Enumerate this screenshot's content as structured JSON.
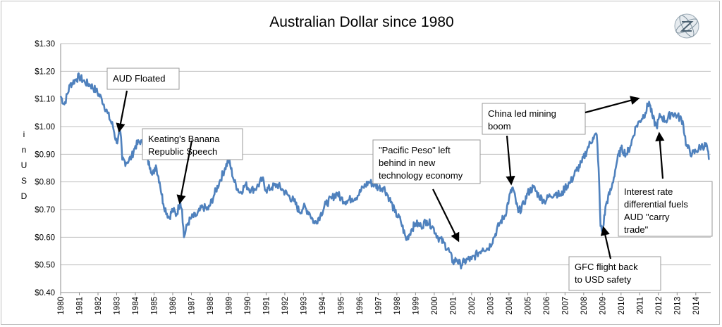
{
  "chart_data": {
    "type": "line",
    "title": "Australian Dollar since 1980",
    "ylabel": "in USD",
    "xlabel": "",
    "ylim": [
      0.4,
      1.3
    ],
    "xlim": [
      1980,
      2014.8
    ],
    "grid": true,
    "legend": "none",
    "line_color": "#4f81bd",
    "yticks": [
      {
        "value": 1.3,
        "label": "$1.30"
      },
      {
        "value": 1.2,
        "label": "$1.20"
      },
      {
        "value": 1.1,
        "label": "$1.10"
      },
      {
        "value": 1.0,
        "label": "$1.00"
      },
      {
        "value": 0.9,
        "label": "$0.90"
      },
      {
        "value": 0.8,
        "label": "$0.80"
      },
      {
        "value": 0.7,
        "label": "$0.70"
      },
      {
        "value": 0.6,
        "label": "$0.60"
      },
      {
        "value": 0.5,
        "label": "$0.50"
      },
      {
        "value": 0.4,
        "label": "$0.40"
      }
    ],
    "xticks": [
      "1980",
      "1981",
      "1982",
      "1983",
      "1984",
      "1985",
      "1986",
      "1987",
      "1988",
      "1989",
      "1990",
      "1991",
      "1992",
      "1993",
      "1994",
      "1995",
      "1996",
      "1997",
      "1998",
      "1999",
      "2000",
      "2001",
      "2002",
      "2003",
      "2004",
      "2005",
      "2006",
      "2007",
      "2008",
      "2009",
      "2010",
      "2011",
      "2012",
      "2013",
      "2014"
    ],
    "series": [
      {
        "name": "",
        "x": [
          1980.0,
          1980.2,
          1980.5,
          1980.8,
          1981.0,
          1981.3,
          1981.6,
          1981.9,
          1982.2,
          1982.5,
          1982.8,
          1983.0,
          1983.1,
          1983.2,
          1983.3,
          1983.5,
          1983.8,
          1984.0,
          1984.3,
          1984.6,
          1984.8,
          1985.0,
          1985.1,
          1985.3,
          1985.5,
          1985.8,
          1986.0,
          1986.2,
          1986.4,
          1986.5,
          1986.6,
          1986.8,
          1987.0,
          1987.3,
          1987.6,
          1987.9,
          1988.2,
          1988.5,
          1988.8,
          1989.0,
          1989.3,
          1989.6,
          1989.9,
          1990.2,
          1990.5,
          1990.8,
          1991.0,
          1991.3,
          1991.6,
          1991.9,
          1992.2,
          1992.5,
          1992.8,
          1993.0,
          1993.3,
          1993.6,
          1993.9,
          1994.2,
          1994.5,
          1994.8,
          1995.0,
          1995.3,
          1995.6,
          1995.9,
          1996.2,
          1996.5,
          1996.8,
          1997.0,
          1997.3,
          1997.6,
          1997.9,
          1998.2,
          1998.5,
          1998.8,
          1999.0,
          1999.3,
          1999.6,
          1999.9,
          2000.2,
          2000.5,
          2000.8,
          2001.0,
          2001.2,
          2001.4,
          2001.6,
          2001.8,
          2002.0,
          2002.3,
          2002.6,
          2002.9,
          2003.2,
          2003.5,
          2003.8,
          2004.0,
          2004.2,
          2004.5,
          2004.8,
          2005.0,
          2005.3,
          2005.6,
          2005.9,
          2006.2,
          2006.5,
          2006.8,
          2007.0,
          2007.3,
          2007.6,
          2007.9,
          2008.2,
          2008.5,
          2008.7,
          2008.8,
          2008.9,
          2009.0,
          2009.2,
          2009.5,
          2009.8,
          2010.0,
          2010.3,
          2010.5,
          2010.8,
          2011.0,
          2011.3,
          2011.5,
          2011.7,
          2011.9,
          2012.1,
          2012.4,
          2012.7,
          2013.0,
          2013.3,
          2013.5,
          2013.8,
          2014.0,
          2014.3,
          2014.6,
          2014.7
        ],
        "values": [
          1.11,
          1.08,
          1.15,
          1.17,
          1.18,
          1.16,
          1.15,
          1.13,
          1.1,
          1.05,
          1.0,
          0.94,
          0.97,
          0.98,
          0.88,
          0.87,
          0.89,
          0.93,
          0.95,
          0.89,
          0.85,
          0.83,
          0.86,
          0.8,
          0.72,
          0.67,
          0.7,
          0.68,
          0.73,
          0.7,
          0.6,
          0.65,
          0.67,
          0.68,
          0.71,
          0.7,
          0.75,
          0.8,
          0.85,
          0.88,
          0.8,
          0.76,
          0.79,
          0.77,
          0.78,
          0.81,
          0.77,
          0.78,
          0.79,
          0.77,
          0.75,
          0.73,
          0.69,
          0.71,
          0.69,
          0.65,
          0.68,
          0.72,
          0.74,
          0.76,
          0.74,
          0.73,
          0.74,
          0.75,
          0.78,
          0.8,
          0.79,
          0.78,
          0.78,
          0.74,
          0.69,
          0.66,
          0.59,
          0.63,
          0.65,
          0.64,
          0.66,
          0.64,
          0.6,
          0.58,
          0.55,
          0.51,
          0.52,
          0.5,
          0.51,
          0.52,
          0.52,
          0.54,
          0.56,
          0.56,
          0.6,
          0.65,
          0.68,
          0.74,
          0.78,
          0.69,
          0.72,
          0.76,
          0.78,
          0.75,
          0.73,
          0.75,
          0.76,
          0.75,
          0.78,
          0.8,
          0.84,
          0.87,
          0.92,
          0.96,
          0.97,
          0.85,
          0.64,
          0.62,
          0.72,
          0.78,
          0.88,
          0.92,
          0.9,
          0.93,
          1.0,
          1.02,
          1.05,
          1.09,
          1.03,
          1.0,
          1.04,
          1.02,
          1.05,
          1.04,
          1.02,
          0.93,
          0.9,
          0.91,
          0.93,
          0.93,
          0.88
        ]
      }
    ],
    "annotations": [
      {
        "lines": [
          "AUD Floated"
        ]
      },
      {
        "lines": [
          "Keating's Banana",
          "Republic Speech"
        ]
      },
      {
        "lines": [
          "\"Pacific Peso\"  left",
          "behind in new",
          "technology economy"
        ]
      },
      {
        "lines": [
          "China led mining",
          "boom"
        ]
      },
      {
        "lines": [
          "Interest rate",
          "differential  fuels",
          "AUD \"carry",
          "trade\""
        ]
      },
      {
        "lines": [
          "GFC  flight back",
          "to USD safety"
        ]
      }
    ]
  }
}
